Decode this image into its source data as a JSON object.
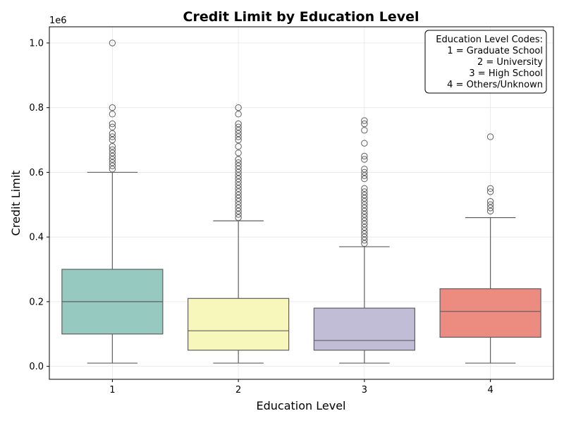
{
  "chart_data": {
    "type": "box",
    "title": "Credit Limit by Education Level",
    "xlabel": "Education Level",
    "ylabel": "Credit Limit",
    "y_scale_label": "1e6",
    "ylim": [
      -0.04,
      1.05
    ],
    "y_ticks": [
      0.0,
      0.2,
      0.4,
      0.6,
      0.8,
      1.0
    ],
    "y_tick_labels": [
      "0.0",
      "0.2",
      "0.4",
      "0.6",
      "0.8",
      "1.0"
    ],
    "categories": [
      "1",
      "2",
      "3",
      "4"
    ],
    "grid": true,
    "legend_placement": "top-right",
    "legend": {
      "title": "Education Level Codes:",
      "entries": [
        "1 = Graduate School",
        "2 = University",
        "3 = High School",
        "4 = Others/Unknown"
      ]
    },
    "boxes": [
      {
        "category": "1",
        "color": "#96cac0",
        "whisker_low": 0.01,
        "q1": 0.1,
        "median": 0.2,
        "q3": 0.3,
        "whisker_high": 0.6,
        "outliers": [
          1.0,
          0.8,
          0.78,
          0.75,
          0.74,
          0.72,
          0.71,
          0.7,
          0.68,
          0.67,
          0.66,
          0.65,
          0.64,
          0.63,
          0.62,
          0.61
        ]
      },
      {
        "category": "2",
        "color": "#f7f7bb",
        "whisker_low": 0.01,
        "q1": 0.05,
        "median": 0.11,
        "q3": 0.21,
        "whisker_high": 0.45,
        "outliers": [
          0.8,
          0.78,
          0.75,
          0.74,
          0.73,
          0.72,
          0.71,
          0.7,
          0.68,
          0.66,
          0.64,
          0.63,
          0.62,
          0.61,
          0.6,
          0.59,
          0.58,
          0.57,
          0.56,
          0.55,
          0.54,
          0.53,
          0.52,
          0.51,
          0.5,
          0.49,
          0.48,
          0.47,
          0.46
        ]
      },
      {
        "category": "3",
        "color": "#c1bdd7",
        "whisker_low": 0.01,
        "q1": 0.05,
        "median": 0.08,
        "q3": 0.18,
        "whisker_high": 0.37,
        "outliers": [
          0.76,
          0.75,
          0.73,
          0.69,
          0.65,
          0.64,
          0.61,
          0.6,
          0.59,
          0.58,
          0.55,
          0.54,
          0.53,
          0.52,
          0.51,
          0.5,
          0.49,
          0.48,
          0.47,
          0.46,
          0.45,
          0.44,
          0.43,
          0.42,
          0.41,
          0.4,
          0.39,
          0.38
        ]
      },
      {
        "category": "4",
        "color": "#ec8b80",
        "whisker_low": 0.01,
        "q1": 0.09,
        "median": 0.17,
        "q3": 0.24,
        "whisker_high": 0.46,
        "outliers": [
          0.71,
          0.55,
          0.54,
          0.51,
          0.5,
          0.49,
          0.48
        ]
      }
    ]
  }
}
